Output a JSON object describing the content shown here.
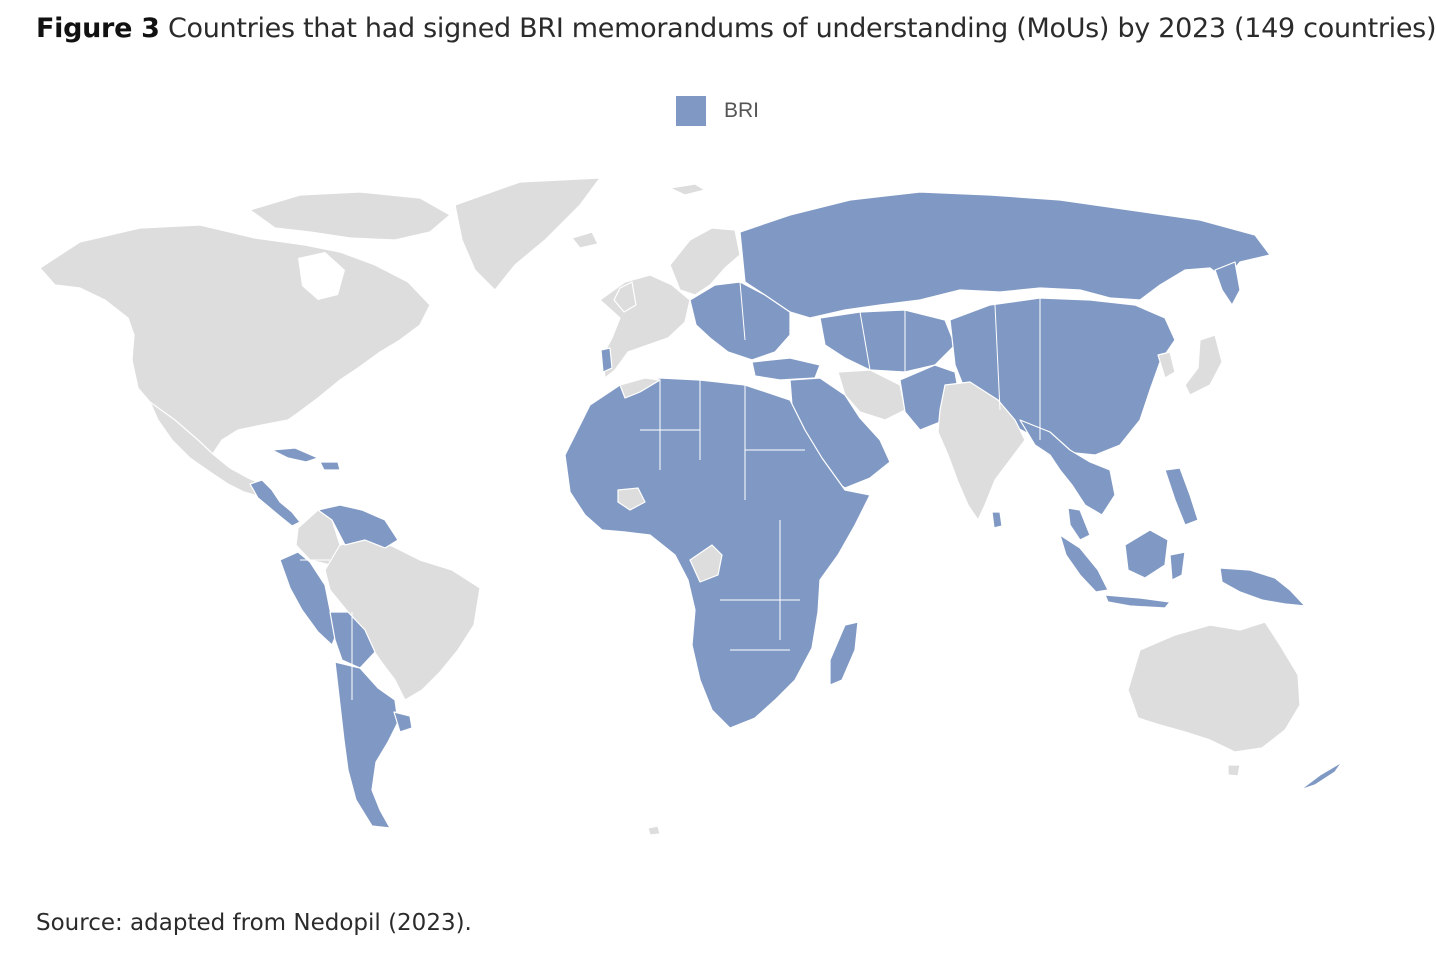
{
  "figure": {
    "label": "Figure 3",
    "caption": "Countries that had signed BRI memorandums of understanding (MoUs) by 2023 (149 countries)"
  },
  "legend": {
    "label": "BRI",
    "color": "#8099c4"
  },
  "map": {
    "bri_color": "#8099c4",
    "non_bri_color": "#dddddd",
    "border_color": "#ffffff"
  },
  "source": {
    "text": "Source: adapted from Nedopil (2023)."
  }
}
